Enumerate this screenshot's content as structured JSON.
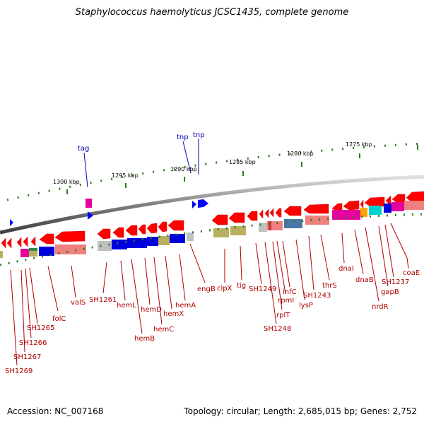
{
  "title": "Staphylococcus haemolyticus JCSC1435, complete genome",
  "footer": {
    "accession": "Accession: NC_007168",
    "summary": "Topology: circular; Length: 2,685,015 bp; Genes: 2,752"
  },
  "scale_labels": [
    "1300 kbp",
    "1295 kbp",
    "1290 kbp",
    "1285 kbp",
    "1280 kbp",
    "1275 kbp"
  ],
  "blue_labels": [
    "tag",
    "tnp",
    "tnp"
  ],
  "gene_labels": [
    "SH1269",
    "SH1267",
    "SH1266",
    "SH1265",
    "folC",
    "valS",
    "SH1261",
    "hemL",
    "hemB",
    "hemD",
    "hemC",
    "hemX",
    "hemA",
    "engB",
    "clpX",
    "tig",
    "SH1249",
    "SH1248",
    "rplT",
    "rpmI",
    "infC",
    "lysP",
    "SH1243",
    "thrS",
    "dnaI",
    "dnaB",
    "nrdR",
    "gapB",
    "SH1237",
    "coaE"
  ],
  "colors": {
    "arrow": "#ff0000",
    "cog_blue": "#0000dd",
    "cog_salmon": "#f08080",
    "cog_magenta": "#e6009e",
    "cog_olive": "#b8b060",
    "cog_gray": "#c0c0c0",
    "cog_cyan": "#00d0d0",
    "cog_steel": "#4a78a8",
    "backbone": "#808080",
    "tick": "#2e7d1e",
    "label_red": "#b00000",
    "label_blue": "#0000b0"
  }
}
